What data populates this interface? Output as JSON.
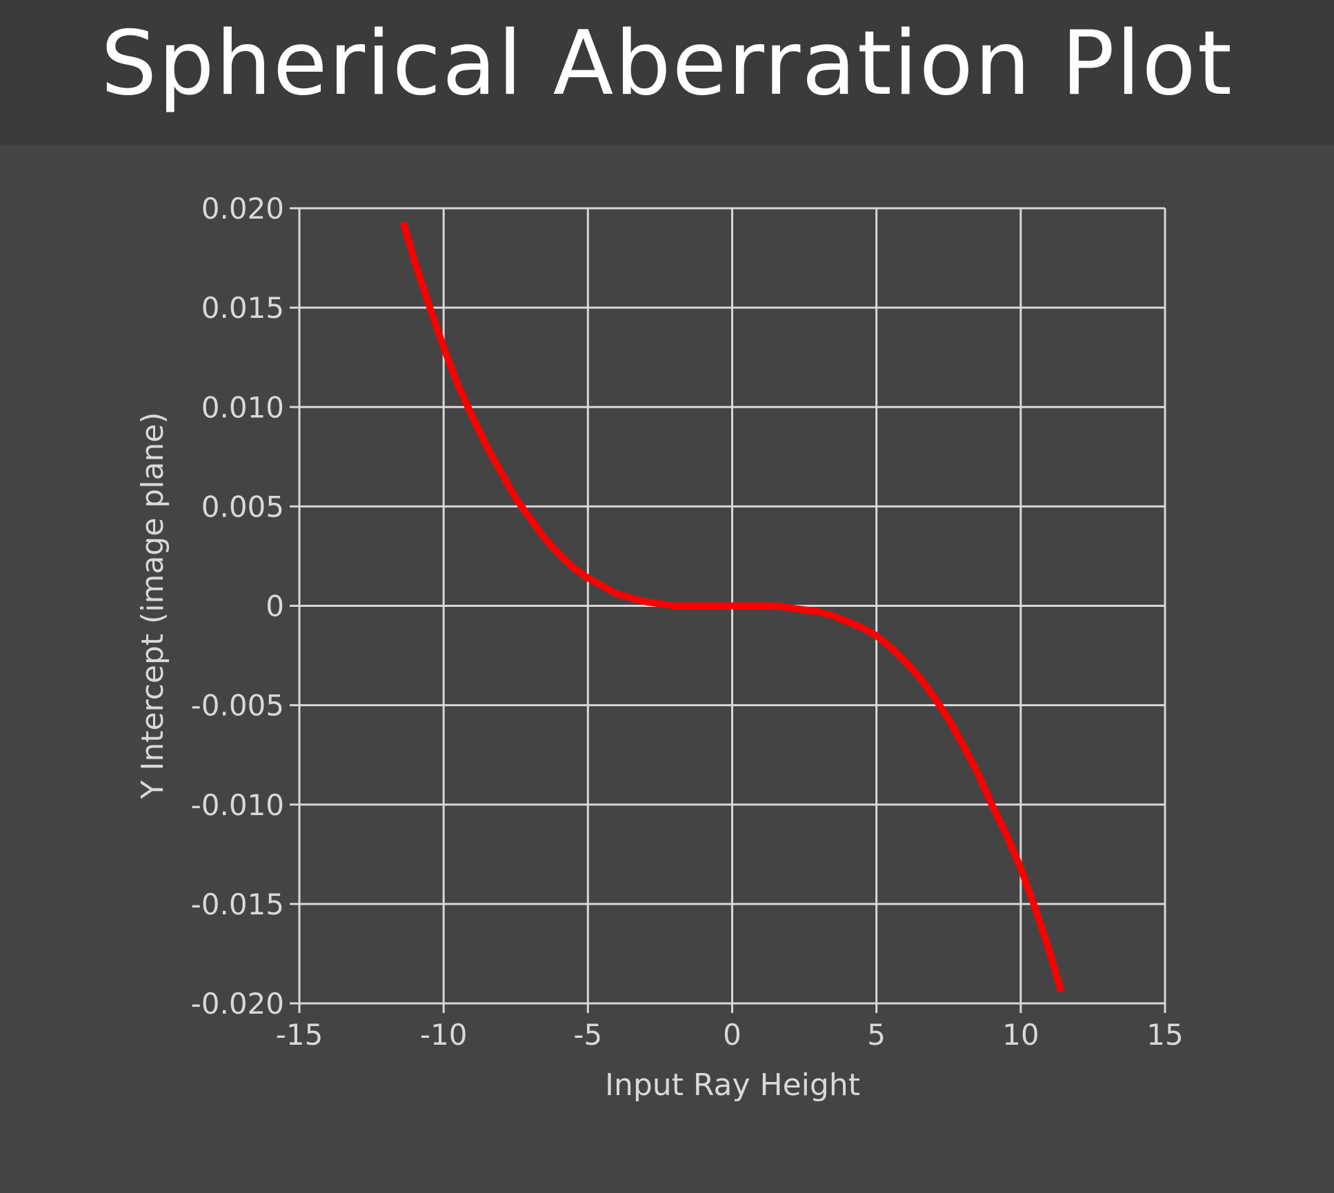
{
  "header": {
    "title": "Spherical Aberration Plot"
  },
  "colors": {
    "background": "#444444",
    "title_bar": "#3b3b3b",
    "grid": "#d9d9d9",
    "text": "#d9d9d9",
    "curve": "#ff0000"
  },
  "chart_data": {
    "type": "line",
    "title": "Spherical Aberration Plot",
    "xlabel": "Input Ray Height",
    "ylabel": "Y Intercept (image plane)",
    "xlim": [
      -15,
      15
    ],
    "ylim": [
      -0.02,
      0.02
    ],
    "x_ticks": [
      -15,
      -10,
      -5,
      0,
      5,
      10,
      15
    ],
    "x_tick_labels": [
      "-15",
      "-10",
      "-5",
      "0",
      "5",
      "10",
      "15"
    ],
    "y_ticks": [
      0.02,
      0.015,
      0.01,
      0.005,
      0,
      -0.005,
      -0.01,
      -0.015,
      -0.02
    ],
    "y_tick_labels": [
      "0.020",
      "0.015",
      "0.010",
      "0.005",
      "0",
      "-0.005",
      "-0.010",
      "-0.015",
      "-0.020"
    ],
    "grid": true,
    "series": [
      {
        "name": "Y Intercept",
        "x": [
          -11.4,
          -11,
          -10.5,
          -10,
          -9.5,
          -9,
          -8.5,
          -8,
          -7.5,
          -7,
          -6.5,
          -6,
          -5.5,
          -5,
          -4.5,
          -4,
          -3.5,
          -3,
          -2.5,
          -2,
          -1.5,
          -1,
          -0.5,
          0,
          0.5,
          1,
          1.5,
          2,
          2.5,
          3,
          3.5,
          4,
          4.5,
          5,
          5.5,
          6,
          6.5,
          7,
          7.5,
          8,
          8.5,
          9,
          9.5,
          10,
          10.5,
          11,
          11.4
        ],
        "y": [
          0.0193,
          0.0173,
          0.0151,
          0.013,
          0.0111,
          0.0095,
          0.008,
          0.0067,
          0.0054,
          0.0044,
          0.0034,
          0.0026,
          0.0019,
          0.0014,
          0.001,
          0.0006,
          0.0004,
          0.0002,
          0.0001,
          0.0,
          0.0,
          0.0,
          0.0,
          0.0,
          0.0,
          0.0,
          0.0,
          -0.0001,
          -0.0002,
          -0.0003,
          -0.0005,
          -0.0008,
          -0.0011,
          -0.0015,
          -0.0021,
          -0.0028,
          -0.0036,
          -0.0046,
          -0.0057,
          -0.007,
          -0.0084,
          -0.01,
          -0.0115,
          -0.0132,
          -0.0152,
          -0.0174,
          -0.0194
        ]
      }
    ]
  }
}
